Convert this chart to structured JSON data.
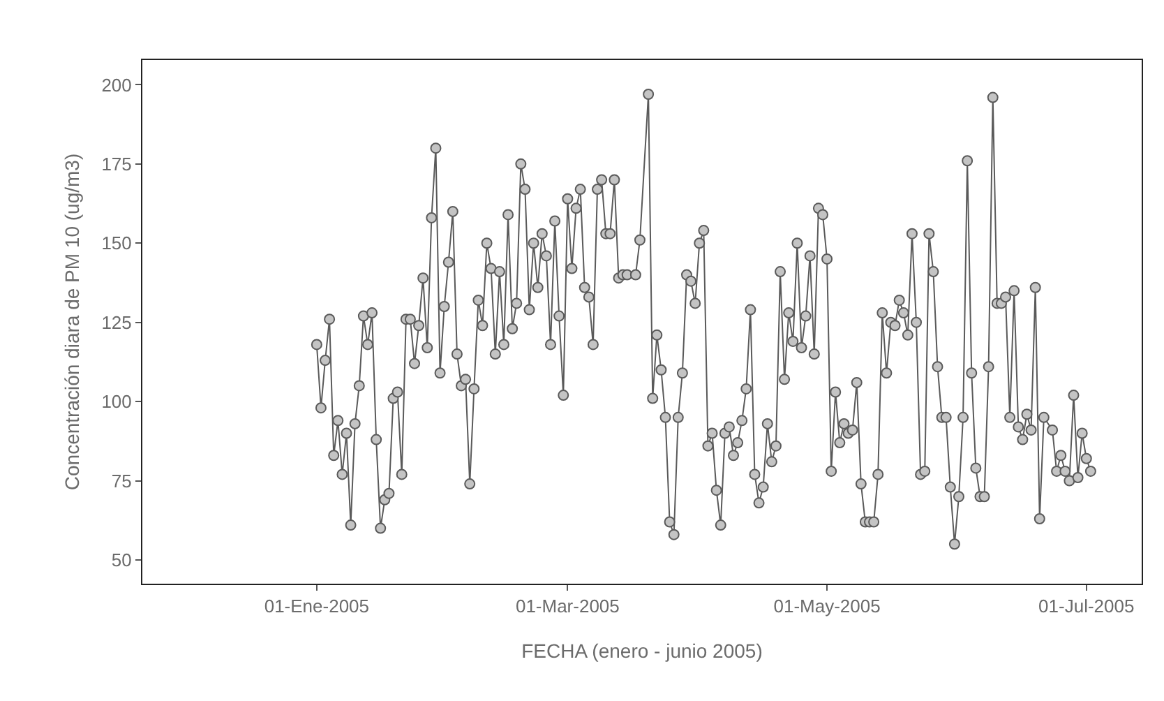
{
  "chart_data": {
    "type": "line",
    "xlabel": "FECHA (enero - junio 2005)",
    "ylabel": "Concentración diara de PM 10 (ug/m3)",
    "x": [
      "2005-01-01",
      "2005-01-02",
      "2005-01-03",
      "2005-01-04",
      "2005-01-05",
      "2005-01-06",
      "2005-01-07",
      "2005-01-08",
      "2005-01-09",
      "2005-01-10",
      "2005-01-11",
      "2005-01-12",
      "2005-01-13",
      "2005-01-14",
      "2005-01-15",
      "2005-01-16",
      "2005-01-17",
      "2005-01-18",
      "2005-01-19",
      "2005-01-20",
      "2005-01-21",
      "2005-01-22",
      "2005-01-23",
      "2005-01-24",
      "2005-01-25",
      "2005-01-26",
      "2005-01-27",
      "2005-01-28",
      "2005-01-29",
      "2005-01-30",
      "2005-01-31",
      "2005-02-01",
      "2005-02-02",
      "2005-02-03",
      "2005-02-04",
      "2005-02-05",
      "2005-02-06",
      "2005-02-07",
      "2005-02-08",
      "2005-02-09",
      "2005-02-10",
      "2005-02-11",
      "2005-02-12",
      "2005-02-13",
      "2005-02-14",
      "2005-02-15",
      "2005-02-16",
      "2005-02-17",
      "2005-02-18",
      "2005-02-19",
      "2005-02-20",
      "2005-02-21",
      "2005-02-22",
      "2005-02-23",
      "2005-02-24",
      "2005-02-25",
      "2005-02-26",
      "2005-02-27",
      "2005-02-28",
      "2005-03-01",
      "2005-03-02",
      "2005-03-03",
      "2005-03-04",
      "2005-03-05",
      "2005-03-06",
      "2005-03-07",
      "2005-03-08",
      "2005-03-09",
      "2005-03-10",
      "2005-03-11",
      "2005-03-12",
      "2005-03-13",
      "2005-03-14",
      "2005-03-15",
      "2005-03-17",
      "2005-03-18",
      "2005-03-20",
      "2005-03-21",
      "2005-03-22",
      "2005-03-23",
      "2005-03-24",
      "2005-03-25",
      "2005-03-26",
      "2005-03-27",
      "2005-03-28",
      "2005-03-29",
      "2005-03-30",
      "2005-03-31",
      "2005-04-01",
      "2005-04-02",
      "2005-04-03",
      "2005-04-04",
      "2005-04-05",
      "2005-04-06",
      "2005-04-07",
      "2005-04-08",
      "2005-04-09",
      "2005-04-10",
      "2005-04-11",
      "2005-04-12",
      "2005-04-13",
      "2005-04-14",
      "2005-04-15",
      "2005-04-16",
      "2005-04-17",
      "2005-04-18",
      "2005-04-19",
      "2005-04-20",
      "2005-04-21",
      "2005-04-22",
      "2005-04-23",
      "2005-04-24",
      "2005-04-25",
      "2005-04-26",
      "2005-04-27",
      "2005-04-28",
      "2005-04-29",
      "2005-04-30",
      "2005-05-01",
      "2005-05-02",
      "2005-05-03",
      "2005-05-04",
      "2005-05-05",
      "2005-05-06",
      "2005-05-07",
      "2005-05-08",
      "2005-05-09",
      "2005-05-10",
      "2005-05-11",
      "2005-05-12",
      "2005-05-13",
      "2005-05-14",
      "2005-05-15",
      "2005-05-16",
      "2005-05-17",
      "2005-05-18",
      "2005-05-19",
      "2005-05-20",
      "2005-05-21",
      "2005-05-22",
      "2005-05-23",
      "2005-05-24",
      "2005-05-25",
      "2005-05-26",
      "2005-05-27",
      "2005-05-28",
      "2005-05-29",
      "2005-05-30",
      "2005-05-31",
      "2005-06-01",
      "2005-06-02",
      "2005-06-03",
      "2005-06-04",
      "2005-06-05",
      "2005-06-06",
      "2005-06-07",
      "2005-06-08",
      "2005-06-09",
      "2005-06-10",
      "2005-06-11",
      "2005-06-12",
      "2005-06-13",
      "2005-06-14",
      "2005-06-15",
      "2005-06-16",
      "2005-06-17",
      "2005-06-18",
      "2005-06-19",
      "2005-06-20",
      "2005-06-21",
      "2005-06-23",
      "2005-06-24",
      "2005-06-25",
      "2005-06-26",
      "2005-06-27",
      "2005-06-28",
      "2005-06-29",
      "2005-06-30",
      "2005-07-01",
      "2005-07-02"
    ],
    "series": [
      {
        "color": "#5a5a5a",
        "values": [
          118,
          98,
          113,
          126,
          83,
          94,
          77,
          90,
          61,
          93,
          105,
          127,
          118,
          128,
          88,
          60,
          69,
          71,
          101,
          103,
          77,
          126,
          126,
          112,
          124,
          139,
          117,
          158,
          180,
          109,
          130,
          144,
          160,
          115,
          105,
          107,
          74,
          104,
          132,
          124,
          150,
          142,
          115,
          141,
          118,
          159,
          123,
          131,
          175,
          167,
          129,
          150,
          136,
          153,
          146,
          118,
          157,
          127,
          102,
          164,
          142,
          161,
          167,
          136,
          133,
          118,
          167,
          170,
          153,
          153,
          170,
          139,
          140,
          140,
          140,
          151,
          197,
          101,
          121,
          110,
          95,
          62,
          58,
          95,
          109,
          140,
          138,
          131,
          150,
          154,
          86,
          90,
          72,
          61,
          90,
          92,
          83,
          87,
          94,
          104,
          129,
          77,
          68,
          73,
          93,
          81,
          86,
          141,
          107,
          128,
          119,
          150,
          117,
          127,
          146,
          115,
          161,
          159,
          145,
          78,
          103,
          87,
          93,
          90,
          91,
          106,
          74,
          62,
          62,
          62,
          77,
          128,
          109,
          125,
          124,
          132,
          128,
          121,
          153,
          125,
          77,
          78,
          153,
          141,
          111,
          95,
          95,
          73,
          55,
          70,
          95,
          176,
          109,
          79,
          70,
          70,
          111,
          196,
          131,
          131,
          133,
          95,
          135,
          92,
          88,
          96,
          91,
          136,
          63,
          95,
          91,
          78,
          83,
          78,
          75,
          102,
          76,
          90,
          82,
          78
        ]
      }
    ],
    "marker": "circle",
    "line_style": "solid",
    "xlim": [
      "2004-11-21",
      "2005-07-14"
    ],
    "xticks": [
      {
        "value": "2005-01-01",
        "label": "01-Ene-2005"
      },
      {
        "value": "2005-03-01",
        "label": "01-Mar-2005"
      },
      {
        "value": "2005-05-01",
        "label": "01-May-2005"
      },
      {
        "value": "2005-07-01",
        "label": "01-Jul-2005"
      }
    ],
    "ylim": [
      42.5,
      207.8
    ],
    "yticks": [
      50,
      75,
      100,
      125,
      150,
      175,
      200
    ]
  }
}
